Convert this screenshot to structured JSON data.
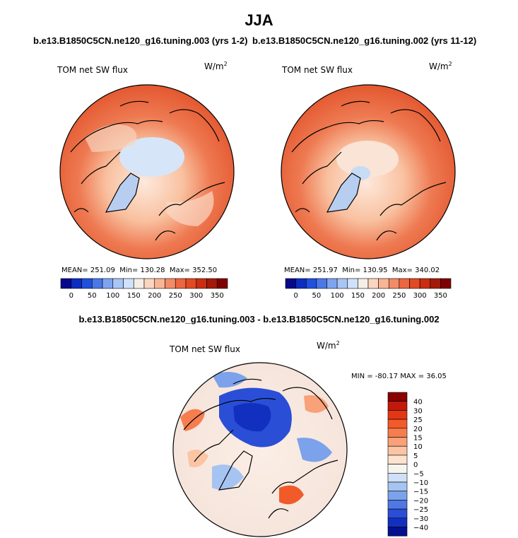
{
  "figure": {
    "title": "JJA",
    "colors": {
      "coast": "#000000",
      "background": "#ffffff"
    }
  },
  "panels": [
    {
      "case": "b.e13.B1850C5CN.ne120_g16.tuning.003 (yrs 1-2)",
      "variable": "TOM net SW flux",
      "units_base": "W/m",
      "units_exp": "2",
      "stats": {
        "mean_label": "MEAN=",
        "mean": "251.09",
        "min_label": "Min=",
        "min": "130.28",
        "max_label": "Max=",
        "max": "352.50"
      }
    },
    {
      "case": "b.e13.B1850C5CN.ne120_g16.tuning.002 (yrs 11-12)",
      "variable": "TOM net SW flux",
      "units_base": "W/m",
      "units_exp": "2",
      "stats": {
        "mean_label": "MEAN=",
        "mean": "251.97",
        "min_label": "Min=",
        "min": "130.95",
        "max_label": "Max=",
        "max": "340.02"
      }
    }
  ],
  "abs_colorbar": {
    "labels": [
      "0",
      "50",
      "100",
      "150",
      "200",
      "250",
      "300",
      "350"
    ],
    "colors": [
      "#08088c",
      "#0c2cc2",
      "#2050dd",
      "#4a78e8",
      "#7ea3f0",
      "#a9c5f6",
      "#d0e2fb",
      "#f5eee6",
      "#fbd5c0",
      "#f8b595",
      "#f28b66",
      "#ec6640",
      "#e14a22",
      "#c92d12",
      "#a31a0a",
      "#7f0000"
    ]
  },
  "diff": {
    "title": "b.e13.B1850C5CN.ne120_g16.tuning.003 - b.e13.B1850C5CN.ne120_g16.tuning.002",
    "variable": "TOM net SW flux",
    "units_base": "W/m",
    "units_exp": "2",
    "stats_text": "MIN = -80.17 MAX =  36.05",
    "colorbar": {
      "labels": [
        "40",
        "30",
        "25",
        "20",
        "15",
        "10",
        "5",
        "0",
        "−5",
        "−10",
        "−15",
        "−20",
        "−25",
        "−30",
        "−40"
      ],
      "colors": [
        "#8b0000",
        "#c11a0a",
        "#e33614",
        "#f25a2a",
        "#f77d4f",
        "#f9a178",
        "#fbc4a4",
        "#fde2cf",
        "#f7f4ee",
        "#cfe0f6",
        "#a6c4f1",
        "#7ba2ea",
        "#4f78e2",
        "#2a4fd6",
        "#1230c0",
        "#04108e"
      ]
    }
  }
}
